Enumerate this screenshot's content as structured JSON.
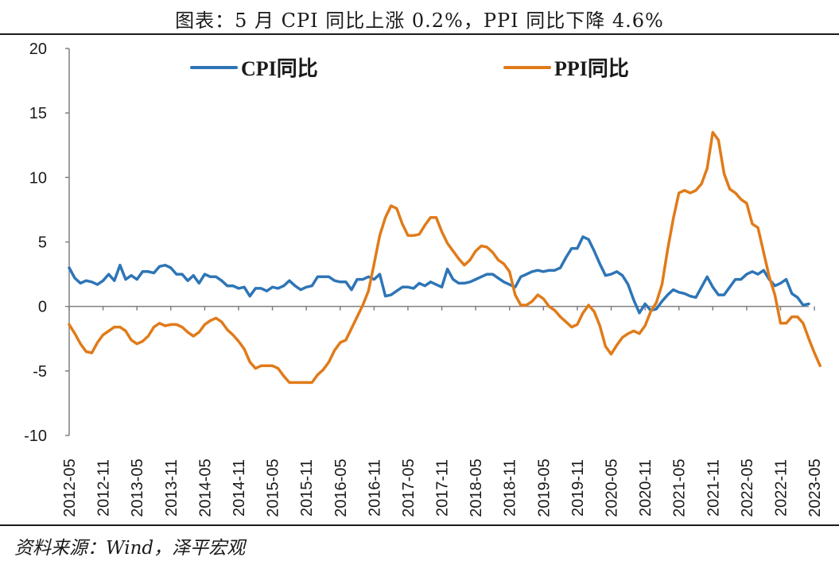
{
  "title": "图表：5 月 CPI 同比上涨 0.2%，PPI 同比下降 4.6%",
  "source": "资料来源：Wind，泽平宏观",
  "chart_data": {
    "type": "line",
    "title": "图表：5 月 CPI 同比上涨 0.2%，PPI 同比下降 4.6%",
    "xlabel": "",
    "ylabel": "",
    "ylim": [
      -10,
      20
    ],
    "yticks": [
      20,
      15,
      10,
      5,
      0,
      -5,
      -10
    ],
    "grid": false,
    "legend": "top",
    "x_tick_labels": [
      "2012-05",
      "2012-11",
      "2013-05",
      "2013-11",
      "2014-05",
      "2014-11",
      "2015-05",
      "2015-11",
      "2016-05",
      "2016-11",
      "2017-05",
      "2017-11",
      "2018-05",
      "2018-11",
      "2019-05",
      "2019-11",
      "2020-05",
      "2020-11",
      "2021-05",
      "2021-11",
      "2022-05",
      "2022-11",
      "2023-05"
    ],
    "x_start": "2012-05",
    "x_end": "2023-05",
    "series": [
      {
        "name": "CPI同比",
        "color": "#2e75b6",
        "values": [
          3.0,
          2.2,
          1.8,
          2.0,
          1.9,
          1.7,
          2.0,
          2.5,
          2.0,
          3.2,
          2.1,
          2.4,
          2.1,
          2.7,
          2.7,
          2.6,
          3.1,
          3.2,
          3.0,
          2.5,
          2.5,
          2.0,
          2.4,
          1.8,
          2.5,
          2.3,
          2.3,
          2.0,
          1.6,
          1.6,
          1.4,
          1.5,
          0.8,
          1.4,
          1.4,
          1.2,
          1.5,
          1.4,
          1.6,
          2.0,
          1.6,
          1.3,
          1.5,
          1.6,
          2.3,
          2.3,
          2.3,
          2.0,
          1.9,
          1.9,
          1.3,
          2.1,
          2.1,
          2.3,
          2.1,
          2.5,
          0.8,
          0.9,
          1.2,
          1.5,
          1.5,
          1.4,
          1.8,
          1.6,
          1.9,
          1.7,
          1.5,
          2.9,
          2.1,
          1.8,
          1.8,
          1.9,
          2.1,
          2.3,
          2.5,
          2.5,
          2.2,
          1.9,
          1.7,
          1.5,
          2.3,
          2.5,
          2.7,
          2.8,
          2.7,
          2.8,
          2.8,
          3.0,
          3.8,
          4.5,
          4.5,
          5.4,
          5.2,
          4.3,
          3.3,
          2.4,
          2.5,
          2.7,
          2.4,
          1.7,
          0.5,
          -0.5,
          0.2,
          -0.3,
          -0.2,
          0.4,
          0.9,
          1.3,
          1.1,
          1.0,
          0.8,
          0.7,
          1.5,
          2.3,
          1.5,
          0.9,
          0.9,
          1.5,
          2.1,
          2.1,
          2.5,
          2.7,
          2.5,
          2.8,
          2.1,
          1.6,
          1.8,
          2.1,
          1.0,
          0.7,
          0.1,
          0.2
        ]
      },
      {
        "name": "PPI同比",
        "color": "#e07b1a",
        "values": [
          -1.4,
          -2.1,
          -2.9,
          -3.5,
          -3.6,
          -2.8,
          -2.2,
          -1.9,
          -1.6,
          -1.6,
          -1.9,
          -2.6,
          -2.9,
          -2.7,
          -2.3,
          -1.6,
          -1.3,
          -1.5,
          -1.4,
          -1.4,
          -1.6,
          -2.0,
          -2.3,
          -2.0,
          -1.4,
          -1.1,
          -0.9,
          -1.2,
          -1.8,
          -2.2,
          -2.7,
          -3.3,
          -4.3,
          -4.8,
          -4.6,
          -4.6,
          -4.6,
          -4.8,
          -5.4,
          -5.9,
          -5.9,
          -5.9,
          -5.9,
          -5.9,
          -5.3,
          -4.9,
          -4.3,
          -3.4,
          -2.8,
          -2.6,
          -1.7,
          -0.8,
          0.1,
          1.2,
          3.3,
          5.5,
          6.9,
          7.8,
          7.6,
          6.4,
          5.5,
          5.5,
          5.6,
          6.3,
          6.9,
          6.9,
          5.8,
          4.9,
          4.3,
          3.7,
          3.2,
          3.6,
          4.3,
          4.7,
          4.6,
          4.2,
          3.6,
          3.3,
          2.7,
          0.9,
          0.1,
          0.1,
          0.4,
          0.9,
          0.6,
          0.0,
          -0.3,
          -0.8,
          -1.2,
          -1.6,
          -1.4,
          -0.5,
          0.1,
          -0.4,
          -1.5,
          -3.1,
          -3.7,
          -3.0,
          -2.4,
          -2.1,
          -1.9,
          -2.1,
          -1.5,
          -0.4,
          0.3,
          1.7,
          4.4,
          6.8,
          8.8,
          9.0,
          8.8,
          9.0,
          9.5,
          10.7,
          13.5,
          12.9,
          10.3,
          9.1,
          8.8,
          8.3,
          8.0,
          6.4,
          6.1,
          4.2,
          2.3,
          0.9,
          -1.3,
          -1.3,
          -0.8,
          -0.8,
          -1.3,
          -2.5,
          -3.6,
          -4.6
        ]
      }
    ]
  }
}
